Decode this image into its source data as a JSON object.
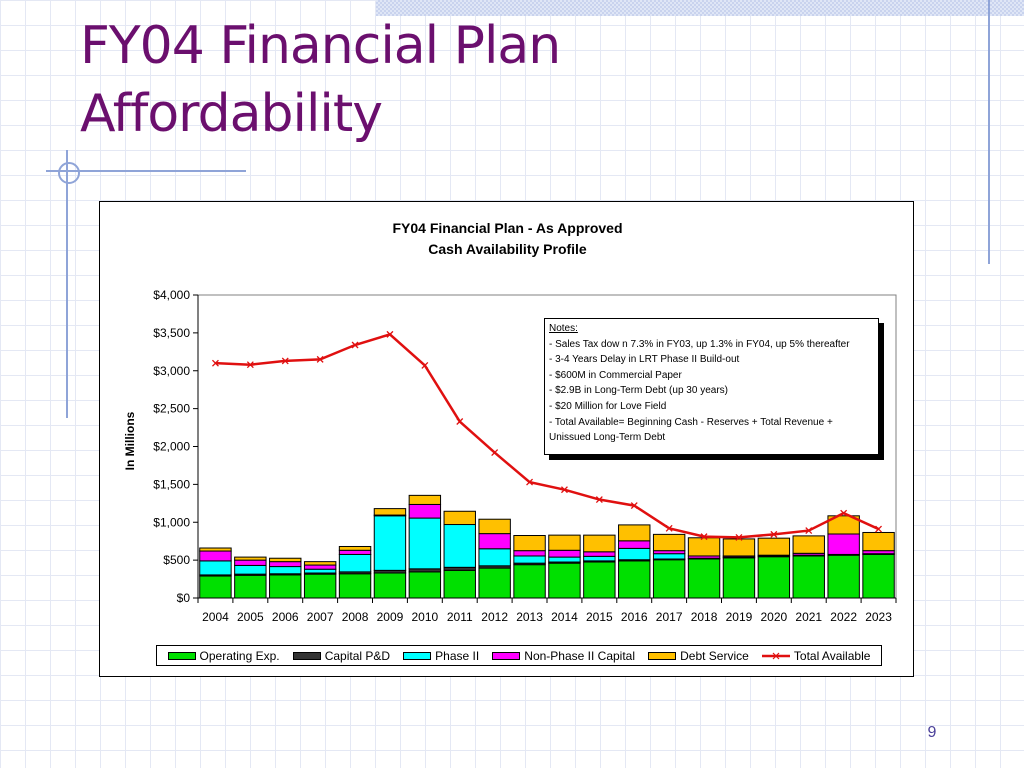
{
  "slide": {
    "title_line1": "FY04 Financial Plan",
    "title_line2": "Affordability",
    "page_number": "9"
  },
  "colors": {
    "title": "#6b0f6e",
    "operating": "#00e000",
    "capital": "#333333",
    "phase2": "#00ffff",
    "nonphase2": "#ff00ff",
    "debt": "#ffc000",
    "total": "#e01010"
  },
  "chart_data": {
    "type": "bar",
    "stacked": true,
    "title": "FY04 Financial Plan - As Approved",
    "subtitle": "Cash Availability Profile",
    "xlabel": "",
    "ylabel": "In Millions",
    "ylim": [
      0,
      4000
    ],
    "yticks": [
      0,
      500,
      1000,
      1500,
      2000,
      2500,
      3000,
      3500,
      4000
    ],
    "ytick_labels": [
      "$0",
      "$500",
      "$1,000",
      "$1,500",
      "$2,000",
      "$2,500",
      "$3,000",
      "$3,500",
      "$4,000"
    ],
    "grid": false,
    "legend_position": "bottom",
    "categories": [
      "2004",
      "2005",
      "2006",
      "2007",
      "2008",
      "2009",
      "2010",
      "2011",
      "2012",
      "2013",
      "2014",
      "2015",
      "2016",
      "2017",
      "2018",
      "2019",
      "2020",
      "2021",
      "2022",
      "2023"
    ],
    "series": [
      {
        "name": "Operating Exp.",
        "kind": "bar",
        "color": "#00e000",
        "values": [
          290,
          300,
          305,
          315,
          320,
          330,
          345,
          365,
          395,
          440,
          460,
          475,
          490,
          505,
          515,
          530,
          545,
          555,
          565,
          575
        ]
      },
      {
        "name": "Capital P&D",
        "kind": "bar",
        "color": "#333333",
        "values": [
          15,
          15,
          15,
          15,
          25,
          35,
          40,
          40,
          30,
          20,
          15,
          15,
          15,
          10,
          10,
          10,
          10,
          10,
          10,
          10
        ]
      },
      {
        "name": "Phase II",
        "kind": "bar",
        "color": "#00ffff",
        "values": [
          185,
          115,
          95,
          50,
          230,
          720,
          670,
          565,
          225,
          95,
          65,
          60,
          150,
          70,
          0,
          0,
          0,
          0,
          0,
          0
        ]
      },
      {
        "name": "Non-Phase II Capital",
        "kind": "bar",
        "color": "#ff00ff",
        "values": [
          130,
          70,
          65,
          55,
          55,
          10,
          180,
          0,
          200,
          70,
          90,
          60,
          100,
          40,
          30,
          15,
          10,
          25,
          270,
          40
        ]
      },
      {
        "name": "Debt Service",
        "kind": "bar",
        "color": "#ffc000",
        "values": [
          40,
          40,
          45,
          45,
          50,
          85,
          120,
          175,
          190,
          200,
          200,
          220,
          210,
          215,
          240,
          225,
          225,
          230,
          240,
          240
        ]
      },
      {
        "name": "Total Available",
        "kind": "line",
        "color": "#e01010",
        "values": [
          3100,
          3080,
          3130,
          3150,
          3340,
          3480,
          3070,
          2330,
          1920,
          1530,
          1430,
          1300,
          1220,
          920,
          810,
          800,
          840,
          890,
          1120,
          910
        ]
      }
    ],
    "notes": {
      "heading": "Notes:",
      "items": [
        "- Sales Tax dow n 7.3% in FY03, up 1.3% in FY04, up 5% thereafter",
        "- 3-4 Years Delay in LRT Phase II Build-out",
        "- $600M in Commercial Paper",
        "- $2.9B in Long-Term Debt (up 30 years)",
        "- $20 Million for Love Field",
        "- Total Available= Beginning Cash - Reserves + Total Revenue + Unissued Long-Term Debt"
      ]
    }
  }
}
